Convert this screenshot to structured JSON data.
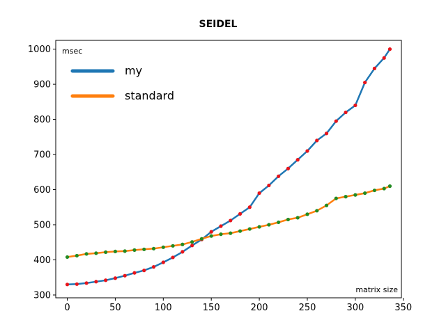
{
  "chart_data": {
    "type": "line",
    "title": "SEIDEL",
    "xlabel": "matrix size",
    "ylabel": "msec",
    "xlim": [
      -12,
      348
    ],
    "ylim": [
      292,
      1025
    ],
    "xticks": [
      0,
      50,
      100,
      150,
      200,
      250,
      300,
      350
    ],
    "yticks": [
      300,
      400,
      500,
      600,
      700,
      800,
      900,
      1000
    ],
    "legend_position": "top-left",
    "grid": false,
    "x": [
      0,
      10,
      20,
      30,
      40,
      50,
      60,
      70,
      80,
      90,
      100,
      110,
      120,
      130,
      140,
      150,
      160,
      170,
      180,
      190,
      200,
      210,
      220,
      230,
      240,
      250,
      260,
      270,
      280,
      290,
      300,
      310,
      320,
      330,
      336
    ],
    "series": [
      {
        "name": "my",
        "color": "#1f77b4",
        "marker_color": "#e8141b",
        "values": [
          330,
          331,
          334,
          338,
          342,
          348,
          355,
          363,
          370,
          380,
          393,
          407,
          423,
          441,
          458,
          480,
          496,
          512,
          531,
          550,
          590,
          612,
          638,
          660,
          685,
          710,
          740,
          760,
          795,
          820,
          840,
          905,
          945,
          975,
          1000
        ]
      },
      {
        "name": "standard",
        "color": "#ff7f0e",
        "marker_color": "#228b22",
        "values": [
          408,
          412,
          417,
          419,
          422,
          424,
          425,
          428,
          430,
          432,
          436,
          440,
          444,
          451,
          460,
          468,
          473,
          476,
          482,
          488,
          494,
          500,
          507,
          515,
          520,
          530,
          540,
          555,
          575,
          580,
          585,
          590,
          598,
          603,
          610
        ]
      }
    ]
  }
}
